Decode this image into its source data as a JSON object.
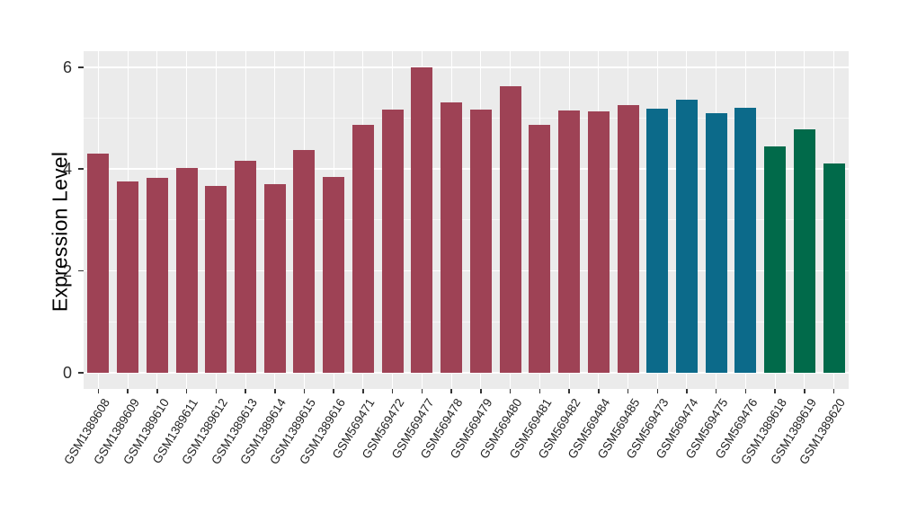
{
  "figure": {
    "background": "#FFFFFF",
    "panel_background": "#EBEBEB",
    "grid_major_color": "#FFFFFF",
    "grid_minor_color": "rgba(255,255,255,0.62)",
    "tick_mark_color": "#333333",
    "y_tick_text_color": "#2E2E2E",
    "x_tick_text_color": "#1F1F1F",
    "axis_title_color": "#000000"
  },
  "chart_data": {
    "type": "bar",
    "title": "",
    "xlabel": "",
    "ylabel": "Expression Level",
    "ylim": [
      0,
      6
    ],
    "yticks": [
      0,
      2,
      4,
      6
    ],
    "yticks_minor": [
      1,
      3,
      5
    ],
    "grid": true,
    "legend": false,
    "categories": [
      "GSM1389608",
      "GSM1389609",
      "GSM1389610",
      "GSM1389611",
      "GSM1389612",
      "GSM1389613",
      "GSM1389614",
      "GSM1389615",
      "GSM1389616",
      "GSM569471",
      "GSM569472",
      "GSM569477",
      "GSM569478",
      "GSM569479",
      "GSM569480",
      "GSM569481",
      "GSM569482",
      "GSM569484",
      "GSM569485",
      "GSM569473",
      "GSM569474",
      "GSM569475",
      "GSM569476",
      "GSM1389618",
      "GSM1389619",
      "GSM1389620"
    ],
    "values": [
      4.3,
      3.75,
      3.83,
      4.02,
      3.66,
      4.17,
      3.71,
      4.38,
      3.84,
      4.86,
      5.17,
      5.99,
      5.3,
      5.17,
      5.62,
      4.86,
      5.15,
      5.13,
      5.26,
      5.18,
      5.36,
      5.1,
      5.21,
      4.45,
      4.78,
      4.11
    ],
    "groups": [
      "maroon",
      "maroon",
      "maroon",
      "maroon",
      "maroon",
      "maroon",
      "maroon",
      "maroon",
      "maroon",
      "maroon",
      "maroon",
      "maroon",
      "maroon",
      "maroon",
      "maroon",
      "maroon",
      "maroon",
      "maroon",
      "maroon",
      "teal",
      "teal",
      "teal",
      "teal",
      "green",
      "green",
      "green"
    ],
    "group_colors": {
      "maroon": "#9E4255",
      "teal": "#0C6A8A",
      "green": "#016A4A"
    }
  }
}
